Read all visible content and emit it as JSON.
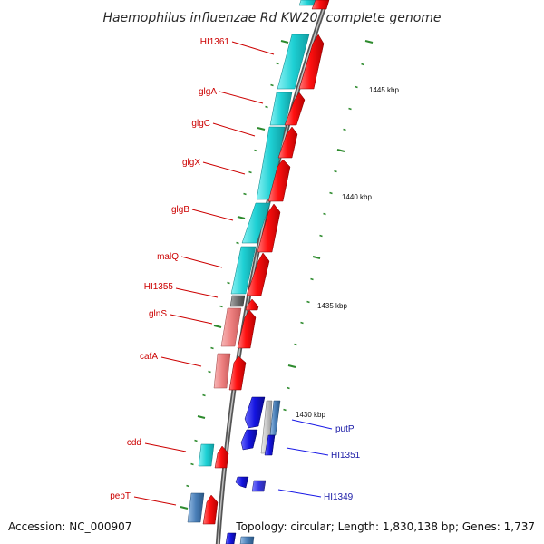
{
  "title": "Haemophilus influenzae Rd KW20, complete genome",
  "footer": {
    "accession": "Accession: NC_000907",
    "topology": "Topology: circular; Length: 1,830,138 bp; Genes: 1,737"
  },
  "scale_labels": [
    "1445 kbp",
    "1440 kbp",
    "1435 kbp",
    "1430 kbp"
  ],
  "colors": {
    "backbone": "#7a7a7a",
    "forward_gene": "#e8000a",
    "forward_light": "#f08a8a",
    "reverse_gene": "#18c8cc",
    "operon_blue": "#1a1ae6",
    "steel_blue": "#4a7fb8",
    "gray_gene": "#707070",
    "tick": "#2e8b2e",
    "label_red": "#cc0000",
    "label_blue": "#1a1aa6"
  },
  "genes": [
    {
      "name": "HI1361",
      "color": "label_red"
    },
    {
      "name": "glgA",
      "color": "label_red"
    },
    {
      "name": "glgC",
      "color": "label_red"
    },
    {
      "name": "glgX",
      "color": "label_red"
    },
    {
      "name": "glgB",
      "color": "label_red"
    },
    {
      "name": "malQ",
      "color": "label_red"
    },
    {
      "name": "HI1355",
      "color": "label_red"
    },
    {
      "name": "glnS",
      "color": "label_red"
    },
    {
      "name": "cafA",
      "color": "label_red"
    },
    {
      "name": "cdd",
      "color": "label_red"
    },
    {
      "name": "pepT",
      "color": "label_red"
    },
    {
      "name": "putP",
      "color": "label_blue"
    },
    {
      "name": "HI1351",
      "color": "label_blue"
    },
    {
      "name": "HI1349",
      "color": "label_blue"
    }
  ]
}
